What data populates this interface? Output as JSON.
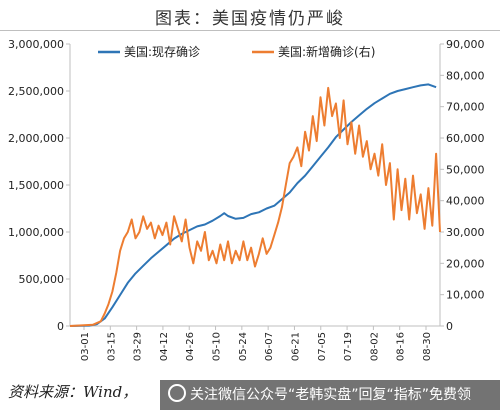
{
  "title": "图表：美国疫情仍严峻",
  "source": "资料来源：Wind，",
  "watermark": "关注微信公众号“老韩实盘”回复“指标”免费领",
  "chart_data": {
    "type": "line",
    "y_left": {
      "ticks": [
        "0",
        "500,000",
        "1,000,000",
        "1,500,000",
        "2,000,000",
        "2,500,000",
        "3,000,000"
      ],
      "ylim": [
        0,
        3000000
      ]
    },
    "y_right": {
      "ticks": [
        "0",
        "10,000",
        "20,000",
        "30,000",
        "40,000",
        "50,000",
        "60,000",
        "70,000",
        "80,000",
        "90,000"
      ],
      "ylim": [
        0,
        90000
      ]
    },
    "x_ticks": [
      "03-01",
      "03-15",
      "03-29",
      "04-12",
      "04-26",
      "05-10",
      "05-24",
      "06-07",
      "06-21",
      "07-05",
      "07-19",
      "08-02",
      "08-16",
      "08-30"
    ],
    "x_range": [
      0,
      192
    ],
    "legend_placement": "top",
    "series": [
      {
        "name": "美国:现存确诊",
        "axis": "left",
        "color": "#2e75b6",
        "points": [
          [
            0,
            0
          ],
          [
            10,
            4000
          ],
          [
            14,
            20000
          ],
          [
            18,
            80000
          ],
          [
            22,
            200000
          ],
          [
            26,
            330000
          ],
          [
            30,
            460000
          ],
          [
            34,
            560000
          ],
          [
            38,
            640000
          ],
          [
            42,
            720000
          ],
          [
            46,
            790000
          ],
          [
            50,
            860000
          ],
          [
            54,
            930000
          ],
          [
            58,
            980000
          ],
          [
            62,
            1020000
          ],
          [
            66,
            1060000
          ],
          [
            70,
            1080000
          ],
          [
            74,
            1120000
          ],
          [
            78,
            1170000
          ],
          [
            80,
            1200000
          ],
          [
            82,
            1170000
          ],
          [
            86,
            1140000
          ],
          [
            90,
            1150000
          ],
          [
            94,
            1190000
          ],
          [
            98,
            1210000
          ],
          [
            102,
            1250000
          ],
          [
            106,
            1280000
          ],
          [
            110,
            1350000
          ],
          [
            114,
            1420000
          ],
          [
            118,
            1520000
          ],
          [
            122,
            1600000
          ],
          [
            126,
            1700000
          ],
          [
            130,
            1800000
          ],
          [
            134,
            1900000
          ],
          [
            138,
            2010000
          ],
          [
            142,
            2090000
          ],
          [
            146,
            2170000
          ],
          [
            150,
            2240000
          ],
          [
            154,
            2310000
          ],
          [
            158,
            2370000
          ],
          [
            162,
            2420000
          ],
          [
            166,
            2470000
          ],
          [
            170,
            2500000
          ],
          [
            174,
            2520000
          ],
          [
            178,
            2540000
          ],
          [
            182,
            2560000
          ],
          [
            186,
            2570000
          ],
          [
            190,
            2540000
          ]
        ]
      },
      {
        "name": "美国:新增确诊(右)",
        "axis": "right",
        "color": "#ed7d31",
        "points": [
          [
            0,
            0
          ],
          [
            12,
            400
          ],
          [
            16,
            1500
          ],
          [
            18,
            4000
          ],
          [
            20,
            7000
          ],
          [
            22,
            11000
          ],
          [
            24,
            17000
          ],
          [
            26,
            24000
          ],
          [
            28,
            28000
          ],
          [
            30,
            30000
          ],
          [
            32,
            34000
          ],
          [
            34,
            28000
          ],
          [
            36,
            30000
          ],
          [
            38,
            35000
          ],
          [
            40,
            31000
          ],
          [
            42,
            33000
          ],
          [
            44,
            28000
          ],
          [
            46,
            32000
          ],
          [
            48,
            29000
          ],
          [
            50,
            33000
          ],
          [
            52,
            26000
          ],
          [
            54,
            35000
          ],
          [
            56,
            31000
          ],
          [
            58,
            27000
          ],
          [
            60,
            34000
          ],
          [
            62,
            25000
          ],
          [
            64,
            20000
          ],
          [
            66,
            27000
          ],
          [
            68,
            24000
          ],
          [
            70,
            30000
          ],
          [
            72,
            21000
          ],
          [
            74,
            24000
          ],
          [
            76,
            20000
          ],
          [
            78,
            26000
          ],
          [
            80,
            21000
          ],
          [
            82,
            27000
          ],
          [
            84,
            20000
          ],
          [
            86,
            24000
          ],
          [
            88,
            21000
          ],
          [
            90,
            27000
          ],
          [
            92,
            21000
          ],
          [
            94,
            25000
          ],
          [
            96,
            19000
          ],
          [
            98,
            23000
          ],
          [
            100,
            28000
          ],
          [
            102,
            23000
          ],
          [
            104,
            25000
          ],
          [
            106,
            29000
          ],
          [
            108,
            33000
          ],
          [
            110,
            38000
          ],
          [
            112,
            45000
          ],
          [
            114,
            52000
          ],
          [
            116,
            54000
          ],
          [
            118,
            57000
          ],
          [
            120,
            51000
          ],
          [
            122,
            62000
          ],
          [
            124,
            56000
          ],
          [
            126,
            67000
          ],
          [
            128,
            59000
          ],
          [
            130,
            73000
          ],
          [
            132,
            64000
          ],
          [
            134,
            76000
          ],
          [
            136,
            67000
          ],
          [
            138,
            71000
          ],
          [
            140,
            60000
          ],
          [
            142,
            72000
          ],
          [
            144,
            58000
          ],
          [
            146,
            65000
          ],
          [
            148,
            55000
          ],
          [
            150,
            64000
          ],
          [
            152,
            54000
          ],
          [
            154,
            59000
          ],
          [
            156,
            50000
          ],
          [
            158,
            55000
          ],
          [
            160,
            48000
          ],
          [
            162,
            58000
          ],
          [
            164,
            45000
          ],
          [
            166,
            52000
          ],
          [
            168,
            34000
          ],
          [
            170,
            50000
          ],
          [
            172,
            37000
          ],
          [
            174,
            47000
          ],
          [
            176,
            34000
          ],
          [
            178,
            48000
          ],
          [
            180,
            36000
          ],
          [
            182,
            42000
          ],
          [
            184,
            31000
          ],
          [
            186,
            44000
          ],
          [
            188,
            32000
          ],
          [
            190,
            55000
          ],
          [
            192,
            30000
          ]
        ]
      }
    ]
  }
}
